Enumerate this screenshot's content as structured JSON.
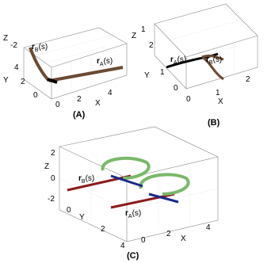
{
  "panels": [
    {
      "label": "(A)",
      "axes": {
        "x": "X",
        "y": "Y",
        "z": "Z"
      },
      "xticks": [
        "0",
        "2",
        "4"
      ],
      "yticks": [
        "4",
        "2",
        "0"
      ],
      "zticks": [
        "-2"
      ],
      "curves": [
        {
          "symbol": "r",
          "sub": "B",
          "arg": "(s)"
        },
        {
          "symbol": "r",
          "sub": "A",
          "arg": "(s)"
        }
      ]
    },
    {
      "label": "(B)",
      "axes": {
        "x": "X",
        "y": "Y",
        "z": "Z"
      },
      "xticks": [
        "0",
        "1",
        "2"
      ],
      "yticks": [
        "2",
        "1",
        "0"
      ],
      "zticks": [
        "1"
      ],
      "curves": [
        {
          "symbol": "r",
          "sub": "B",
          "arg": "(s)"
        },
        {
          "symbol": "r",
          "sub": "A",
          "arg": "(s)"
        }
      ]
    },
    {
      "label": "(C)",
      "axes": {
        "x": "X",
        "y": "Y",
        "z": "Z"
      },
      "xticks": [
        "0",
        "2",
        "4"
      ],
      "yticks": [
        "0",
        "2",
        "4"
      ],
      "zticks": [
        "2",
        "0",
        "-2"
      ],
      "curves": [
        {
          "symbol": "r",
          "sub": "B",
          "arg": "(s)"
        },
        {
          "symbol": "r",
          "sub": "A",
          "arg": "(s)"
        }
      ]
    }
  ]
}
